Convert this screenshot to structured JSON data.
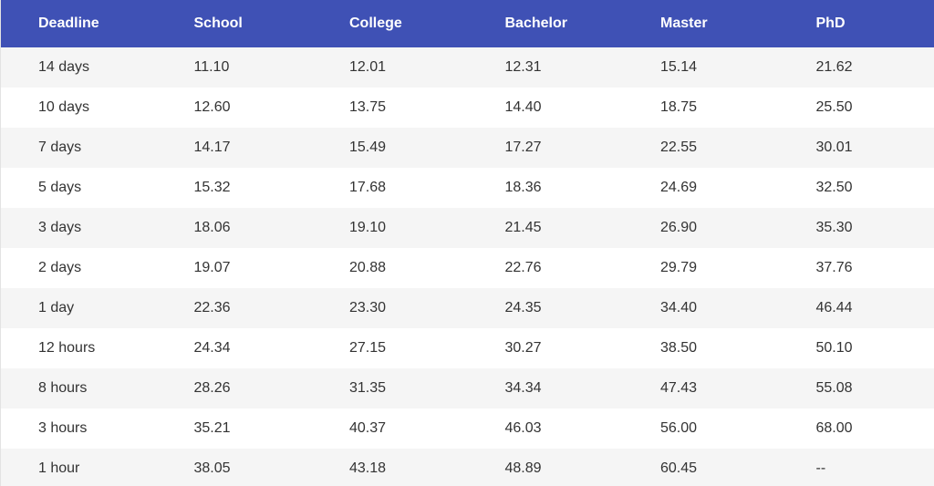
{
  "table": {
    "header": [
      "Deadline",
      "School",
      "College",
      "Bachelor",
      "Master",
      "PhD"
    ],
    "rows": [
      [
        "14 days",
        "11.10",
        "12.01",
        "12.31",
        "15.14",
        "21.62"
      ],
      [
        "10 days",
        "12.60",
        "13.75",
        "14.40",
        "18.75",
        "25.50"
      ],
      [
        "7 days",
        "14.17",
        "15.49",
        "17.27",
        "22.55",
        "30.01"
      ],
      [
        "5 days",
        "15.32",
        "17.68",
        "18.36",
        "24.69",
        "32.50"
      ],
      [
        "3 days",
        "18.06",
        "19.10",
        "21.45",
        "26.90",
        "35.30"
      ],
      [
        "2 days",
        "19.07",
        "20.88",
        "22.76",
        "29.79",
        "37.76"
      ],
      [
        "1 day",
        "22.36",
        "23.30",
        "24.35",
        "34.40",
        "46.44"
      ],
      [
        "12 hours",
        "24.34",
        "27.15",
        "30.27",
        "38.50",
        "50.10"
      ],
      [
        "8 hours",
        "28.26",
        "31.35",
        "34.34",
        "47.43",
        "55.08"
      ],
      [
        "3 hours",
        "35.21",
        "40.37",
        "46.03",
        "56.00",
        "68.00"
      ],
      [
        "1 hour",
        "38.05",
        "43.18",
        "48.89",
        "60.45",
        "--"
      ]
    ]
  }
}
